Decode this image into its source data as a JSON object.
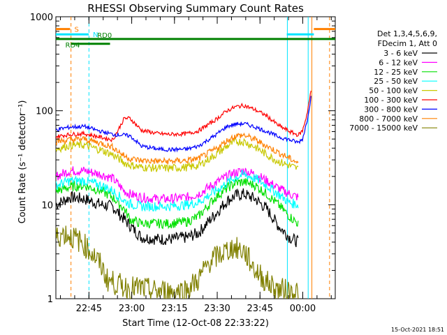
{
  "chart_data": {
    "type": "line",
    "title": "RHESSI Observing Summary Count Rates",
    "xlabel": "Start Time (12-Oct-08 22:33:22)",
    "ylabel": "Count Rate (s⁻¹ detector⁻¹)",
    "y_scale": "log",
    "ylim": [
      1,
      1000
    ],
    "xlim_minutes_after_start": [
      0,
      98
    ],
    "x_ticks": [
      {
        "label": "22:45",
        "minutes": 11.6
      },
      {
        "label": "23:00",
        "minutes": 26.6
      },
      {
        "label": "23:15",
        "minutes": 41.6
      },
      {
        "label": "23:30",
        "minutes": 56.6
      },
      {
        "label": "23:45",
        "minutes": 71.6
      },
      {
        "label": "00:00",
        "minutes": 86.6
      }
    ],
    "y_ticks": [
      {
        "label": "1",
        "value": 1
      },
      {
        "label": "10",
        "value": 10
      },
      {
        "label": "100",
        "value": 100
      },
      {
        "label": "1000",
        "value": 1000
      }
    ],
    "legend_title": [
      "Det 1,3,4,5,6,9,",
      "FDecim 1, Att 0"
    ],
    "legend_position": "right",
    "footer_date": "15-Oct-2021 18:51",
    "series": [
      {
        "name": "3 - 6 keV",
        "color": "#000000",
        "x": [
          0,
          5,
          10,
          16,
          20,
          26,
          30,
          36,
          40,
          46,
          50,
          56,
          60,
          63,
          66,
          70,
          74,
          78,
          82,
          85
        ],
        "y": [
          10,
          12,
          11.5,
          10,
          9.5,
          6,
          4.5,
          4.3,
          4.3,
          4.5,
          5,
          8,
          11,
          12.5,
          13,
          11.5,
          9,
          6,
          4.5,
          4
        ]
      },
      {
        "name": "6 - 12 keV",
        "color": "#ff00ff",
        "x": [
          0,
          5,
          10,
          16,
          20,
          24,
          26,
          30,
          36,
          40,
          46,
          50,
          56,
          60,
          63,
          66,
          70,
          74,
          78,
          82,
          85
        ],
        "y": [
          20,
          23,
          23,
          21,
          19,
          14,
          13,
          12,
          11.5,
          11.5,
          12,
          13,
          17,
          20,
          22,
          23,
          21,
          18,
          15,
          13,
          12
        ]
      },
      {
        "name": "12 - 25 keV",
        "color": "#00e000",
        "x": [
          0,
          5,
          10,
          16,
          20,
          24,
          26,
          30,
          36,
          40,
          46,
          50,
          56,
          60,
          63,
          66,
          70,
          74,
          78,
          82,
          85
        ],
        "y": [
          14,
          15.5,
          16,
          14,
          12,
          9,
          7,
          6.3,
          6.3,
          6.3,
          6.6,
          7.5,
          12,
          15,
          17,
          17.5,
          16,
          13,
          10,
          7.5,
          6.3
        ]
      },
      {
        "name": "25 - 50 keV",
        "color": "#00ffff",
        "x": [
          0,
          5,
          10,
          16,
          20,
          24,
          26,
          30,
          36,
          40,
          46,
          50,
          56,
          60,
          63,
          66,
          70,
          74,
          78,
          82,
          85
        ],
        "y": [
          16,
          18,
          18,
          16,
          14,
          11,
          10.2,
          9.6,
          9.6,
          9.6,
          10,
          10.6,
          14,
          17,
          19.5,
          21,
          19,
          16,
          13,
          10.5,
          10
        ]
      },
      {
        "name": "50 - 100 keV",
        "color": "#c8c800",
        "x": [
          0,
          5,
          10,
          16,
          20,
          24,
          26,
          30,
          36,
          40,
          46,
          50,
          56,
          60,
          63,
          66,
          70,
          74,
          78,
          82,
          85
        ],
        "y": [
          39,
          43,
          43,
          38,
          34,
          28,
          26.5,
          25,
          24.5,
          24.5,
          25,
          26,
          34,
          42,
          47,
          47,
          41,
          34,
          29,
          26,
          24
        ]
      },
      {
        "name": "100 - 300 keV",
        "color": "#ff0000",
        "x": [
          0,
          5,
          10,
          16,
          20,
          24,
          26,
          28,
          30,
          36,
          40,
          46,
          50,
          56,
          60,
          63,
          66,
          70,
          74,
          78,
          82,
          85,
          86.5,
          88,
          89.5
        ],
        "y": [
          53,
          56,
          57,
          52,
          49,
          83,
          83,
          72,
          62,
          57,
          56,
          57,
          61,
          80,
          100,
          110,
          114,
          102,
          88,
          70,
          60,
          55,
          61,
          90,
          160
        ]
      },
      {
        "name": "300 - 800 keV",
        "color": "#0000ff",
        "x": [
          0,
          5,
          10,
          16,
          20,
          24,
          26,
          28,
          30,
          36,
          40,
          46,
          50,
          56,
          60,
          63,
          66,
          70,
          74,
          78,
          82,
          85,
          86.5,
          88,
          89.5
        ],
        "y": [
          63,
          67,
          68,
          60,
          56,
          55,
          54,
          48,
          42,
          39,
          38.5,
          39,
          42,
          55,
          68,
          72,
          73,
          67,
          60,
          53,
          49,
          46,
          50,
          75,
          140
        ]
      },
      {
        "name": "800 - 7000 keV",
        "color": "#ff8000",
        "x": [
          0,
          5,
          10,
          16,
          20,
          24,
          26,
          30,
          36,
          40,
          46,
          50,
          56,
          60,
          63,
          66,
          70,
          74,
          78,
          82,
          85
        ],
        "y": [
          47,
          49,
          50,
          45,
          41,
          33,
          31,
          29.5,
          29,
          29,
          29.5,
          31,
          39,
          48,
          54,
          55,
          49,
          42,
          36,
          31,
          28
        ]
      },
      {
        "name": "7000 - 15000 keV",
        "color": "#808000",
        "x": [
          0,
          3,
          6,
          9,
          13,
          16,
          18,
          22,
          26,
          30,
          34,
          38,
          42,
          46,
          50,
          54,
          58,
          62,
          66,
          70,
          74,
          78,
          82,
          85
        ],
        "y": [
          4.5,
          5,
          4.5,
          4,
          3,
          2.2,
          1.6,
          1.4,
          1.3,
          1.3,
          1.2,
          1.2,
          1.2,
          1.25,
          1.6,
          2.5,
          3,
          3.5,
          3.2,
          2,
          1.5,
          1.25,
          1.2,
          1.2
        ]
      }
    ],
    "annotations": {
      "S": {
        "label": "S",
        "color": "#ff8000",
        "segments": [
          [
            0,
            5
          ],
          [
            90.5,
            98
          ]
        ],
        "value": 740
      },
      "N": {
        "label": "N",
        "color": "#00e5ff",
        "segments": [
          [
            0,
            11.5
          ],
          [
            81,
            90.5
          ]
        ],
        "value": 650
      },
      "RD0": {
        "label": "RD0",
        "color": "#008000",
        "segments": [
          [
            0,
            98
          ]
        ],
        "value": 580
      },
      "RD4": {
        "label": "RD4",
        "color": "#008000",
        "segments": [
          [
            5.5,
            19
          ]
        ],
        "value": 515
      },
      "vlines": [
        {
          "minutes": 5.3,
          "color": "#ff8000",
          "dashed": true
        },
        {
          "minutes": 11.6,
          "color": "#00e5ff",
          "dashed": true
        },
        {
          "minutes": 81.2,
          "color": "#00e5ff",
          "dashed": false
        },
        {
          "minutes": 88.5,
          "color": "#00e5ff",
          "dashed": false
        },
        {
          "minutes": 89.8,
          "color": "#ff8000",
          "dashed": false
        },
        {
          "minutes": 96.0,
          "color": "#ff8000",
          "dashed": true
        }
      ]
    }
  }
}
